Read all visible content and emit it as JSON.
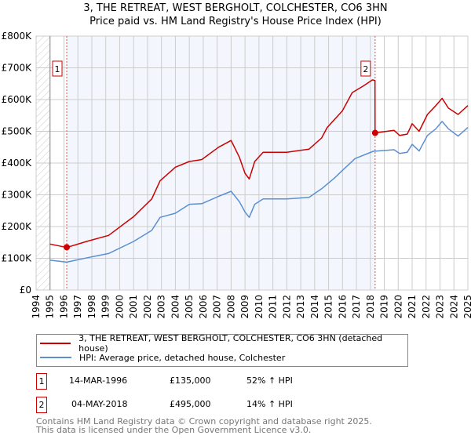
{
  "title": "3, THE RETREAT, WEST BERGHOLT, COLCHESTER, CO6 3HN",
  "subtitle": "Price paid vs. HM Land Registry's House Price Index (HPI)",
  "chart_data": {
    "type": "line",
    "title": "3, THE RETREAT, WEST BERGHOLT, COLCHESTER, CO6 3HN",
    "subtitle": "Price paid vs. HM Land Registry's House Price Index (HPI)",
    "xlim": [
      1994,
      2025
    ],
    "ylim": [
      0,
      800000
    ],
    "x_ticks": [
      "1994",
      "1995",
      "1996",
      "1997",
      "1998",
      "1999",
      "2000",
      "2001",
      "2002",
      "2003",
      "2004",
      "2005",
      "2006",
      "2007",
      "2008",
      "2009",
      "2010",
      "2011",
      "2012",
      "2013",
      "2014",
      "2015",
      "2016",
      "2017",
      "2018",
      "2019",
      "2020",
      "2021",
      "2022",
      "2023",
      "2024",
      "2025"
    ],
    "y_ticks": [
      {
        "v": 0,
        "label": "£0"
      },
      {
        "v": 100000,
        "label": "£100K"
      },
      {
        "v": 200000,
        "label": "£200K"
      },
      {
        "v": 300000,
        "label": "£300K"
      },
      {
        "v": 400000,
        "label": "£400K"
      },
      {
        "v": 500000,
        "label": "£500K"
      },
      {
        "v": 600000,
        "label": "£600K"
      },
      {
        "v": 700000,
        "label": "£700K"
      },
      {
        "v": 800000,
        "label": "£800K"
      }
    ],
    "grid": true,
    "series": [
      {
        "name": "3, THE RETREAT, WEST BERGHOLT, COLCHESTER, CO6 3HN (detached house)",
        "color": "#cc0000",
        "x": [
          1995,
          1996.2,
          1997.7,
          1999.2,
          2001,
          2002.3,
          2002.9,
          2004,
          2005,
          2005.9,
          2007.1,
          2008,
          2008.6,
          2009,
          2009.3,
          2009.7,
          2010.3,
          2012,
          2013.6,
          2014.5,
          2014.9,
          2016,
          2016.7,
          2017.5,
          2018.15,
          2018.33,
          2018.34,
          2019.7,
          2020.1,
          2020.65,
          2021,
          2021.5,
          2022.1,
          2022.7,
          2023.15,
          2023.6,
          2024.3,
          2025
        ],
        "y": [
          145000,
          134000,
          154000,
          172000,
          231000,
          287000,
          344000,
          387000,
          405000,
          411000,
          450000,
          471000,
          418000,
          368000,
          350000,
          405000,
          434000,
          434000,
          444000,
          479000,
          512000,
          565000,
          622000,
          643000,
          662000,
          660000,
          495000,
          503000,
          487000,
          491000,
          524000,
          500000,
          553000,
          581000,
          604000,
          573000,
          553000,
          581000
        ]
      },
      {
        "name": "HPI: Average price, detached house, Colchester",
        "color": "#5b8fd1",
        "x": [
          1995,
          1996.2,
          1997.7,
          1999.2,
          2001,
          2002.3,
          2002.9,
          2004,
          2005,
          2005.9,
          2007.1,
          2008,
          2008.6,
          2009,
          2009.3,
          2009.7,
          2010.3,
          2012,
          2013.6,
          2014.5,
          2015.4,
          2016,
          2016.9,
          2018.2,
          2019.7,
          2020.1,
          2020.65,
          2021,
          2021.5,
          2022.1,
          2022.7,
          2023.15,
          2023.6,
          2024.3,
          2025
        ],
        "y": [
          94000,
          88000,
          102000,
          115000,
          153000,
          188000,
          229000,
          242000,
          270000,
          272000,
          295000,
          311000,
          278000,
          246000,
          229000,
          270000,
          287000,
          287000,
          292000,
          319000,
          352000,
          377000,
          414000,
          437000,
          442000,
          430000,
          434000,
          459000,
          438000,
          487000,
          508000,
          531000,
          508000,
          485000,
          512000
        ]
      }
    ],
    "sales": [
      {
        "id": "1",
        "x": 1996.2,
        "y": 135000
      },
      {
        "id": "2",
        "x": 2018.34,
        "y": 495000
      }
    ],
    "legend": "bottom"
  },
  "legend": {
    "property": "3, THE RETREAT, WEST BERGHOLT, COLCHESTER, CO6 3HN (detached house)",
    "hpi": "HPI: Average price, detached house, Colchester"
  },
  "transactions": [
    {
      "id": "1",
      "date": "14-MAR-1996",
      "price": "£135,000",
      "delta": "52% ↑ HPI"
    },
    {
      "id": "2",
      "date": "04-MAY-2018",
      "price": "£495,000",
      "delta": "14% ↑ HPI"
    }
  ],
  "footer": {
    "line1": "Contains HM Land Registry data © Crown copyright and database right 2025.",
    "line2": "This data is licensed under the Open Government Licence v3.0."
  }
}
